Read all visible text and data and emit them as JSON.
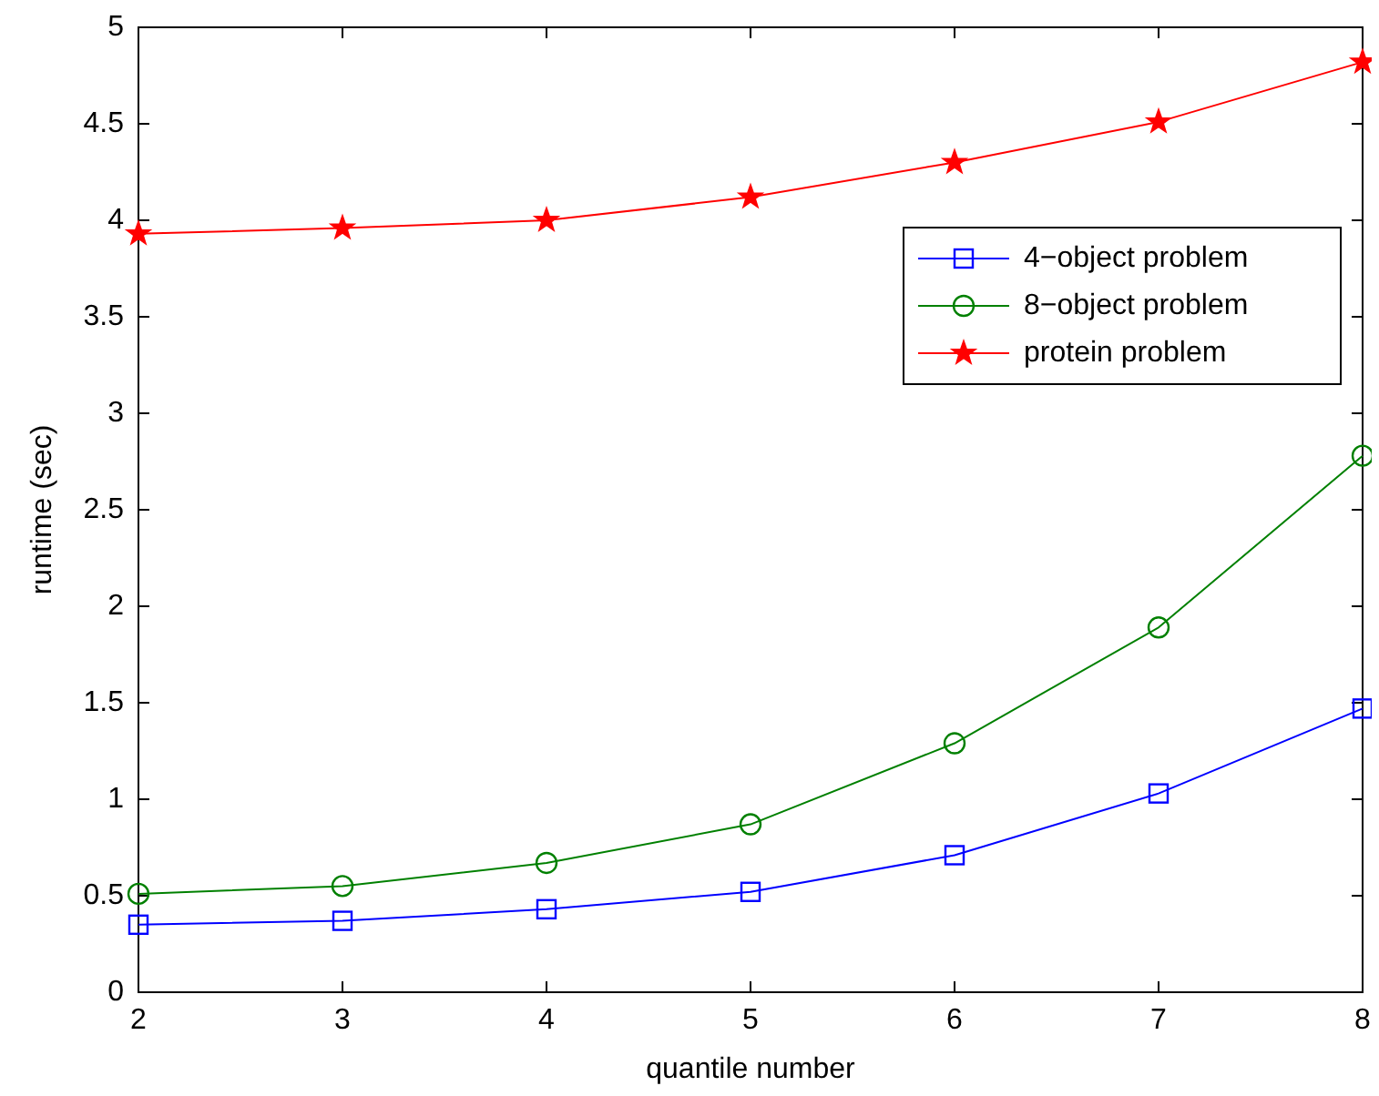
{
  "chart_data": {
    "type": "line",
    "xlabel": "quantile number",
    "ylabel": "runtime (sec)",
    "x": [
      2,
      3,
      4,
      5,
      6,
      7,
      8
    ],
    "xlim": [
      2,
      8
    ],
    "xticks": [
      2,
      3,
      4,
      5,
      6,
      7,
      8
    ],
    "ylim": [
      0,
      5
    ],
    "yticks": [
      0,
      0.5,
      1,
      1.5,
      2,
      2.5,
      3,
      3.5,
      4,
      4.5,
      5
    ],
    "legend": "top right",
    "grid": false,
    "line_style": "solid",
    "series": [
      {
        "name": "4−object problem",
        "color": "#0000ff",
        "marker": "square",
        "values": [
          0.35,
          0.37,
          0.43,
          0.52,
          0.71,
          1.03,
          1.47
        ]
      },
      {
        "name": "8−object problem",
        "color": "#008000",
        "marker": "circle",
        "values": [
          0.51,
          0.55,
          0.67,
          0.87,
          1.29,
          1.89,
          2.78
        ]
      },
      {
        "name": "protein problem",
        "color": "#ff0000",
        "marker": "star",
        "values": [
          3.93,
          3.96,
          4.0,
          4.12,
          4.3,
          4.51,
          4.82
        ]
      }
    ]
  }
}
